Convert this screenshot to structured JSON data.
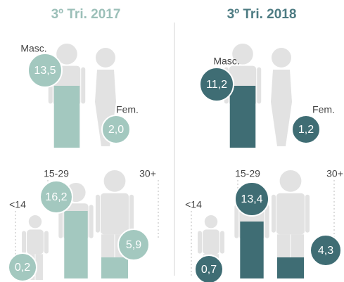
{
  "panels": [
    {
      "title": "3º Tri. 2017",
      "gender": {
        "male_label": "Masc.",
        "male_value": "13,5",
        "female_label": "Fem.",
        "female_value": "2,0"
      },
      "age": [
        {
          "label": "<14",
          "value": "0,2"
        },
        {
          "label": "15-29",
          "value": "16,2"
        },
        {
          "label": "30+",
          "value": "5,9"
        }
      ]
    },
    {
      "title": "3º Tri. 2018",
      "gender": {
        "male_label": "Masc.",
        "male_value": "11,2",
        "female_label": "Fem.",
        "female_value": "1,2"
      },
      "age": [
        {
          "label": "<14",
          "value": "0,7"
        },
        {
          "label": "15-29",
          "value": "13,4"
        },
        {
          "label": "30+",
          "value": "4,3"
        }
      ]
    }
  ]
}
